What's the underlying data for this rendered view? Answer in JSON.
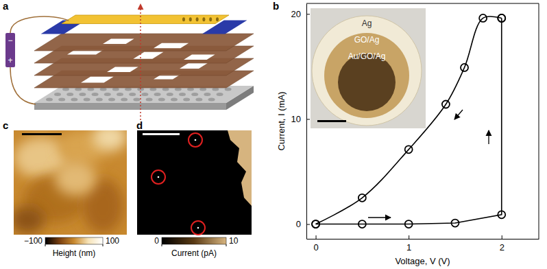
{
  "panels": {
    "a": {
      "label": "a",
      "battery": [
        "−",
        "+"
      ]
    },
    "c": {
      "label": "c",
      "colorbar": {
        "range": [
          -100,
          100
        ],
        "ticks": [
          {
            "value": -100,
            "label": "−100"
          },
          100
        ],
        "title": "Height (nm)"
      }
    },
    "d": {
      "label": "d",
      "colorbar": {
        "range": [
          0,
          10
        ],
        "ticks": [
          0,
          10
        ],
        "title": "Current (pA)"
      }
    }
  },
  "chart_data": {
    "type": "line",
    "panel_label": "b",
    "x_label": "Voltage, V (V)",
    "y_label": "Current, I (mA)",
    "xlim": [
      -0.1,
      2.4
    ],
    "xticks": [
      0,
      1,
      2
    ],
    "ylim": [
      -1.4,
      21
    ],
    "yticks": [
      0,
      10,
      20
    ],
    "marker": "circle",
    "color": "#000000",
    "series": [
      {
        "x": [
          0,
          0.5,
          1,
          1.5,
          2,
          2
        ],
        "values": [
          0,
          0,
          0,
          0.1,
          0.9,
          19.6
        ]
      },
      {
        "x": [
          2,
          1.8,
          1.6,
          1.4,
          1,
          0.5,
          0
        ],
        "values": [
          19.6,
          19.6,
          14.9,
          11.4,
          7.1,
          2.5,
          0
        ]
      }
    ],
    "inset": {
      "labels": [
        "Ag",
        "GO/Ag",
        "Au/GO/Ag"
      ]
    }
  }
}
